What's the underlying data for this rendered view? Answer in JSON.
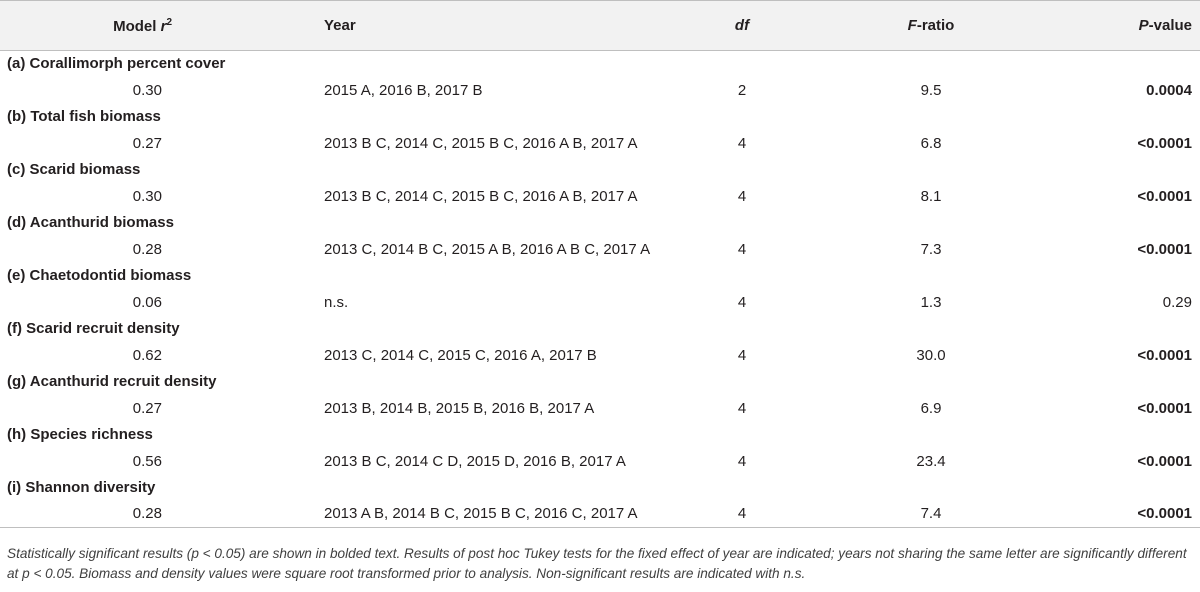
{
  "headers": {
    "model_prefix": "Model ",
    "model_var": "r",
    "model_sup": "2",
    "year": "Year",
    "df": "df",
    "f_var": "F",
    "f_suffix": "-ratio",
    "p_var": "P",
    "p_suffix": "-value"
  },
  "rows": [
    {
      "label": "(a) Corallimorph percent cover",
      "r2": "0.30",
      "year": "2015 A, 2016 B, 2017 B",
      "df": "2",
      "f": "9.5",
      "p": "0.0004",
      "significant": true
    },
    {
      "label": "(b) Total fish biomass",
      "r2": "0.27",
      "year": "2013 B C, 2014 C, 2015 B C, 2016 A B, 2017 A",
      "df": "4",
      "f": "6.8",
      "p": "<0.0001",
      "significant": true
    },
    {
      "label": "(c) Scarid biomass",
      "r2": "0.30",
      "year": "2013 B C, 2014 C, 2015 B C, 2016 A B, 2017 A",
      "df": "4",
      "f": "8.1",
      "p": "<0.0001",
      "significant": true
    },
    {
      "label": "(d) Acanthurid biomass",
      "r2": "0.28",
      "year": "2013 C, 2014 B C, 2015 A B, 2016 A B C, 2017 A",
      "df": "4",
      "f": "7.3",
      "p": "<0.0001",
      "significant": true
    },
    {
      "label": "(e) Chaetodontid biomass",
      "r2": "0.06",
      "year": "n.s.",
      "df": "4",
      "f": "1.3",
      "p": "0.29",
      "significant": false
    },
    {
      "label": "(f) Scarid recruit density",
      "r2": "0.62",
      "year": "2013 C, 2014 C, 2015 C, 2016 A, 2017 B",
      "df": "4",
      "f": "30.0",
      "p": "<0.0001",
      "significant": true
    },
    {
      "label": "(g) Acanthurid recruit density",
      "r2": "0.27",
      "year": "2013 B, 2014 B, 2015 B, 2016 B, 2017 A",
      "df": "4",
      "f": "6.9",
      "p": "<0.0001",
      "significant": true
    },
    {
      "label": "(h) Species richness",
      "r2": "0.56",
      "year": "2013 B C, 2014 C D, 2015 D, 2016 B, 2017 A",
      "df": "4",
      "f": "23.4",
      "p": "<0.0001",
      "significant": true
    },
    {
      "label": "(i) Shannon diversity",
      "r2": "0.28",
      "year": "2013 A B, 2014 B C, 2015 B C, 2016 C, 2017 A",
      "df": "4",
      "f": "7.4",
      "p": "<0.0001",
      "significant": true
    }
  ],
  "caption": "Statistically significant results (p < 0.05) are shown in bolded text. Results of post hoc Tukey tests for the fixed effect of year are indicated; years not sharing the same letter are significantly different at p < 0.05. Biomass and density values were square root transformed prior to analysis. Non-significant results are indicated with n.s."
}
